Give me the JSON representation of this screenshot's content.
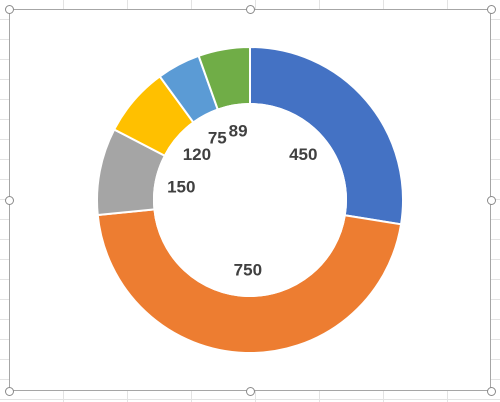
{
  "chart_data": {
    "type": "doughnut",
    "rings": [
      {
        "level": "inner",
        "values": [
          450,
          750,
          150,
          120,
          75,
          89
        ],
        "data_labels": [
          "450",
          "750",
          "150",
          "120",
          "75",
          "89"
        ],
        "colors": [
          "#4472C4",
          "#ED7D31",
          "#A5A5A5",
          "#FFC000",
          "#5B9BD5",
          "#70AD47"
        ],
        "fill": "transparent"
      },
      {
        "level": "outer",
        "values": [
          450,
          750,
          150,
          120,
          75,
          89
        ],
        "colors": [
          "#4472C4",
          "#ED7D31",
          "#A5A5A5",
          "#FFC000",
          "#5B9BD5",
          "#70AD47"
        ],
        "fill": "solid"
      }
    ],
    "legend": "none",
    "title": ""
  }
}
